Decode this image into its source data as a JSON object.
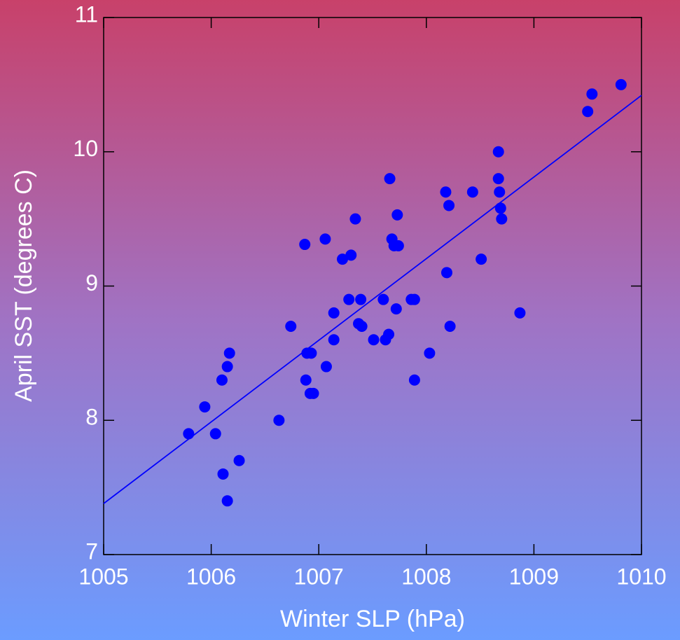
{
  "chart_data": {
    "type": "scatter",
    "x_label": "Winter SLP (hPa)",
    "y_label": "April SST (degrees C)",
    "xlim": [
      1005,
      1010
    ],
    "ylim": [
      7,
      11
    ],
    "xticks": [
      1005,
      1006,
      1007,
      1008,
      1009,
      1010
    ],
    "yticks": [
      7,
      8,
      9,
      10,
      11
    ],
    "series": [
      {
        "color": "#0000ff",
        "x": [
          1005.79,
          1005.94,
          1006.04,
          1006.1,
          1006.11,
          1006.15,
          1006.15,
          1006.17,
          1006.26,
          1006.63,
          1006.74,
          1006.87,
          1006.88,
          1006.89,
          1006.93,
          1006.92,
          1006.95,
          1007.06,
          1007.07,
          1007.14,
          1007.14,
          1007.22,
          1007.28,
          1007.3,
          1007.34,
          1007.37,
          1007.39,
          1007.4,
          1007.51,
          1007.6,
          1007.62,
          1007.65,
          1007.66,
          1007.68,
          1007.7,
          1007.72,
          1007.73,
          1007.74,
          1007.86,
          1007.89,
          1007.89,
          1008.03,
          1008.18,
          1008.19,
          1008.21,
          1008.22,
          1008.43,
          1008.51,
          1008.67,
          1008.67,
          1008.68,
          1008.69,
          1008.7,
          1008.87,
          1009.5,
          1009.54,
          1009.81
        ],
        "values": [
          7.9,
          8.1,
          7.9,
          8.3,
          7.6,
          8.4,
          7.4,
          8.5,
          7.7,
          8.0,
          8.7,
          9.31,
          8.3,
          8.5,
          8.5,
          8.2,
          8.2,
          9.35,
          8.4,
          8.8,
          8.6,
          9.2,
          8.9,
          9.23,
          9.5,
          8.72,
          8.9,
          8.7,
          8.6,
          8.9,
          8.6,
          8.64,
          9.8,
          9.35,
          9.3,
          8.83,
          9.53,
          9.3,
          8.9,
          8.9,
          8.3,
          8.5,
          9.7,
          9.1,
          9.6,
          8.7,
          9.7,
          9.2,
          10.0,
          9.8,
          9.7,
          9.58,
          9.5,
          8.8,
          10.3,
          10.43,
          10.5
        ]
      }
    ],
    "fit_line": {
      "color": "#0000ff",
      "x": [
        1005,
        1010
      ],
      "values": [
        7.38,
        10.42
      ]
    }
  }
}
